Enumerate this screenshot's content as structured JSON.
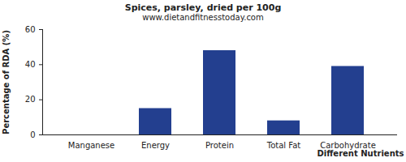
{
  "chart_data": {
    "type": "bar",
    "title": "Spices, parsley, dried per 100g",
    "subtitle": "www.dietandfitnesstoday.com",
    "x_label": "Different Nutrients",
    "y_label": "Percentage of RDA (%)",
    "categories": [
      "Manganese",
      "Energy",
      "Protein",
      "Total Fat",
      "Carbohydrate"
    ],
    "values": [
      0,
      15,
      48,
      8,
      39
    ],
    "color": "#233f8f",
    "ylim": [
      0,
      60
    ],
    "yticks": [
      0,
      20,
      40,
      60
    ],
    "grid": false
  }
}
